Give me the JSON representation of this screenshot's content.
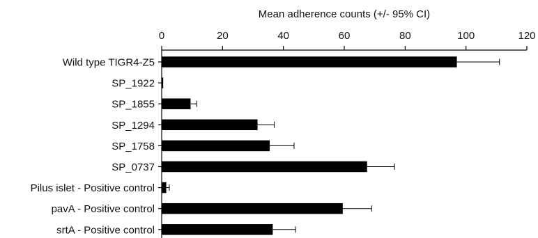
{
  "chart_data": {
    "type": "bar",
    "orientation": "horizontal",
    "xlabel": "Mean adherence counts (+/- 95% CI)",
    "xlabel_position": "top",
    "xlim": [
      0,
      120
    ],
    "xticks": [
      0,
      20,
      40,
      60,
      80,
      100,
      120
    ],
    "categories": [
      "Wild type TIGR4-Z5",
      "SP_1922",
      "SP_1855",
      "SP_1294",
      "SP_1758",
      "SP_0737",
      "Pilus islet - Positive control",
      "pavA - Positive control",
      "srtA - Positive control"
    ],
    "values": [
      97,
      0.5,
      9.5,
      31.5,
      35.5,
      67.5,
      1.5,
      59.5,
      36.5
    ],
    "error_upper": [
      111,
      0.5,
      11.5,
      37,
      43.5,
      76.5,
      2.5,
      69,
      44
    ],
    "bar_color": "#000000",
    "grid": false,
    "legend": "none"
  }
}
